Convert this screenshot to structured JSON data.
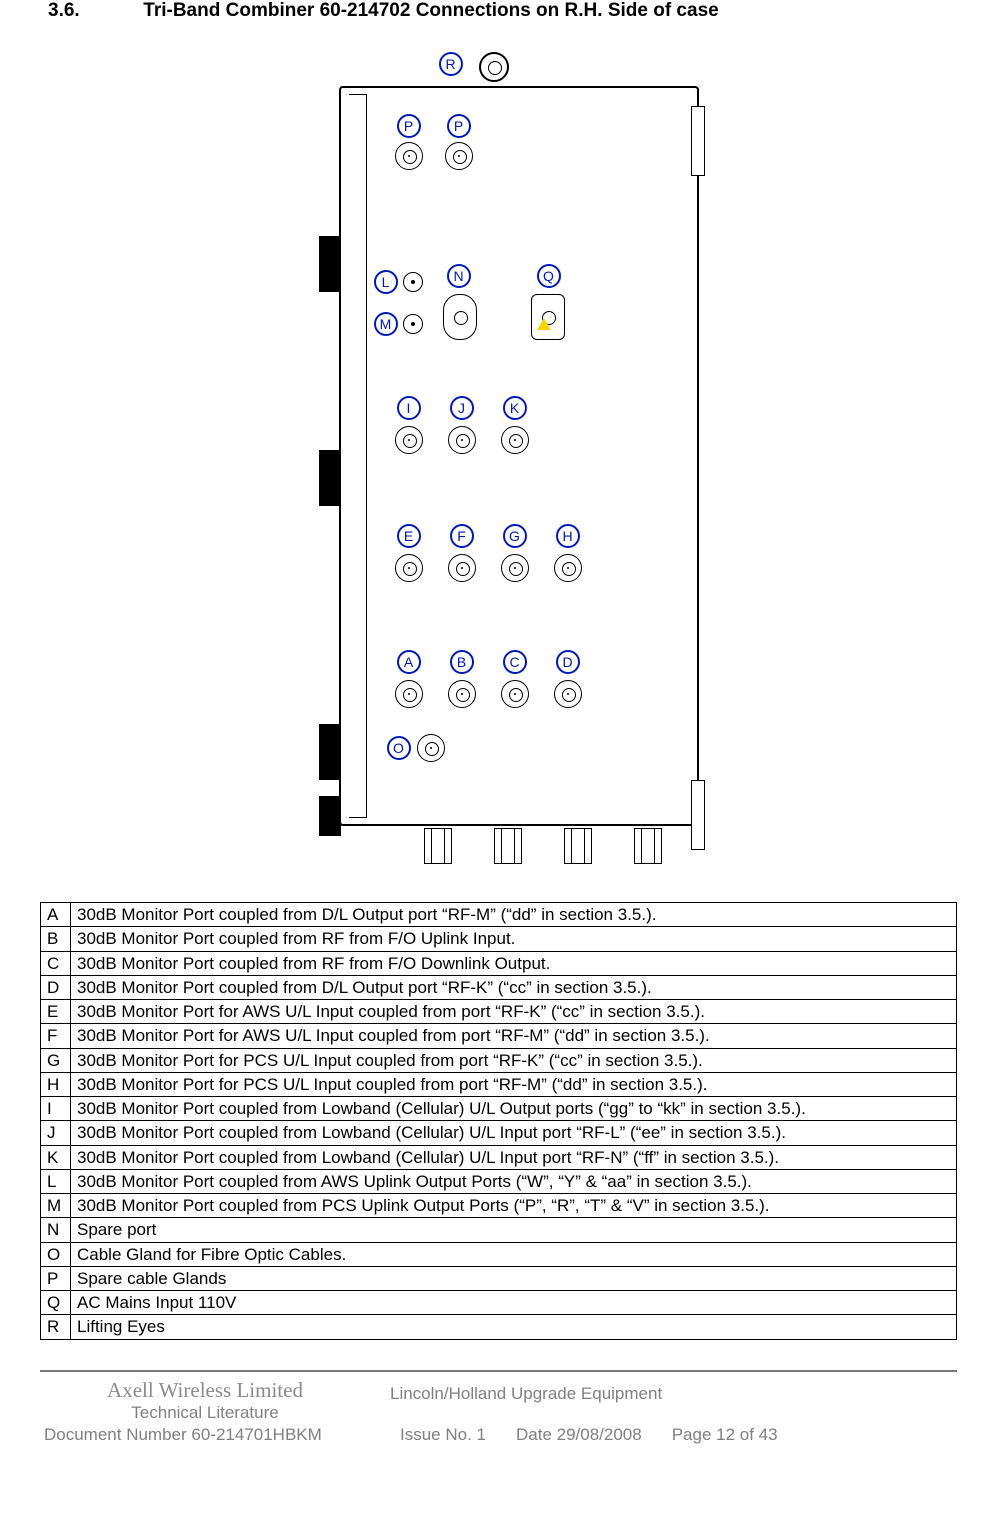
{
  "heading": {
    "number": "3.6.",
    "title": "Tri-Band Combiner 60-214702 Connections on R.H. Side of case"
  },
  "labels": {
    "R": "R",
    "P": "P",
    "L": "L",
    "M": "M",
    "N": "N",
    "Q": "Q",
    "I": "I",
    "J": "J",
    "K": "K",
    "E": "E",
    "F": "F",
    "G": "G",
    "H": "H",
    "A": "A",
    "B": "B",
    "C": "C",
    "D": "D",
    "O": "O"
  },
  "rows": [
    {
      "k": "A",
      "v": "30dB Monitor Port coupled from D/L Output port “RF-M” (“dd” in section 3.5.)."
    },
    {
      "k": "B",
      "v": "30dB Monitor Port coupled from RF from F/O Uplink Input."
    },
    {
      "k": "C",
      "v": "30dB Monitor Port coupled from RF from F/O Downlink Output."
    },
    {
      "k": "D",
      "v": "30dB Monitor Port coupled from D/L Output port “RF-K” (“cc” in section 3.5.)."
    },
    {
      "k": "E",
      "v": "30dB Monitor Port  for AWS U/L Input coupled from port “RF-K” (“cc” in section 3.5.)."
    },
    {
      "k": "F",
      "v": "30dB Monitor Port  for AWS U/L Input coupled from port “RF-M” (“dd” in section 3.5.)."
    },
    {
      "k": "G",
      "v": "30dB Monitor Port  for PCS U/L Input coupled from port “RF-K” (“cc” in section 3.5.)."
    },
    {
      "k": "H",
      "v": "30dB Monitor Port  for PCS U/L Input coupled from port “RF-M” (“dd” in section 3.5.)."
    },
    {
      "k": "I",
      "v": "30dB Monitor Port coupled from Lowband (Cellular) U/L Output ports (“gg” to “kk” in section 3.5.)."
    },
    {
      "k": "J",
      "v": "30dB Monitor Port coupled from Lowband (Cellular) U/L Input port “RF-L” (“ee” in section 3.5.)."
    },
    {
      "k": "K",
      "v": "30dB Monitor Port coupled from Lowband (Cellular) U/L Input port “RF-N” (“ff” in section 3.5.)."
    },
    {
      "k": "L",
      "v": "30dB Monitor Port coupled from AWS Uplink Output Ports (“W”, “Y” & “aa” in section 3.5.)."
    },
    {
      "k": "M",
      "v": "30dB Monitor Port coupled from PCS Uplink Output Ports  (“P”, “R”, “T” & “V” in section 3.5.)."
    },
    {
      "k": "N",
      "v": "Spare port"
    },
    {
      "k": "O",
      "v": "Cable Gland for Fibre Optic Cables."
    },
    {
      "k": "P",
      "v": "Spare cable Glands"
    },
    {
      "k": "Q",
      "v": "AC Mains Input 110V"
    },
    {
      "k": "R",
      "v": "Lifting Eyes"
    }
  ],
  "footer": {
    "company": "Axell Wireless Limited",
    "subtitle": "Technical Literature",
    "product": "Lincoln/Holland Upgrade Equipment",
    "docnum": "Document Number 60-214701HBKM",
    "issue": "Issue No. 1",
    "date": "Date 29/08/2008",
    "page": "Page 12 of 43"
  },
  "style": {
    "bubble_stroke": "#0018b5",
    "text_color": "#000000",
    "footer_color": "#808080"
  }
}
